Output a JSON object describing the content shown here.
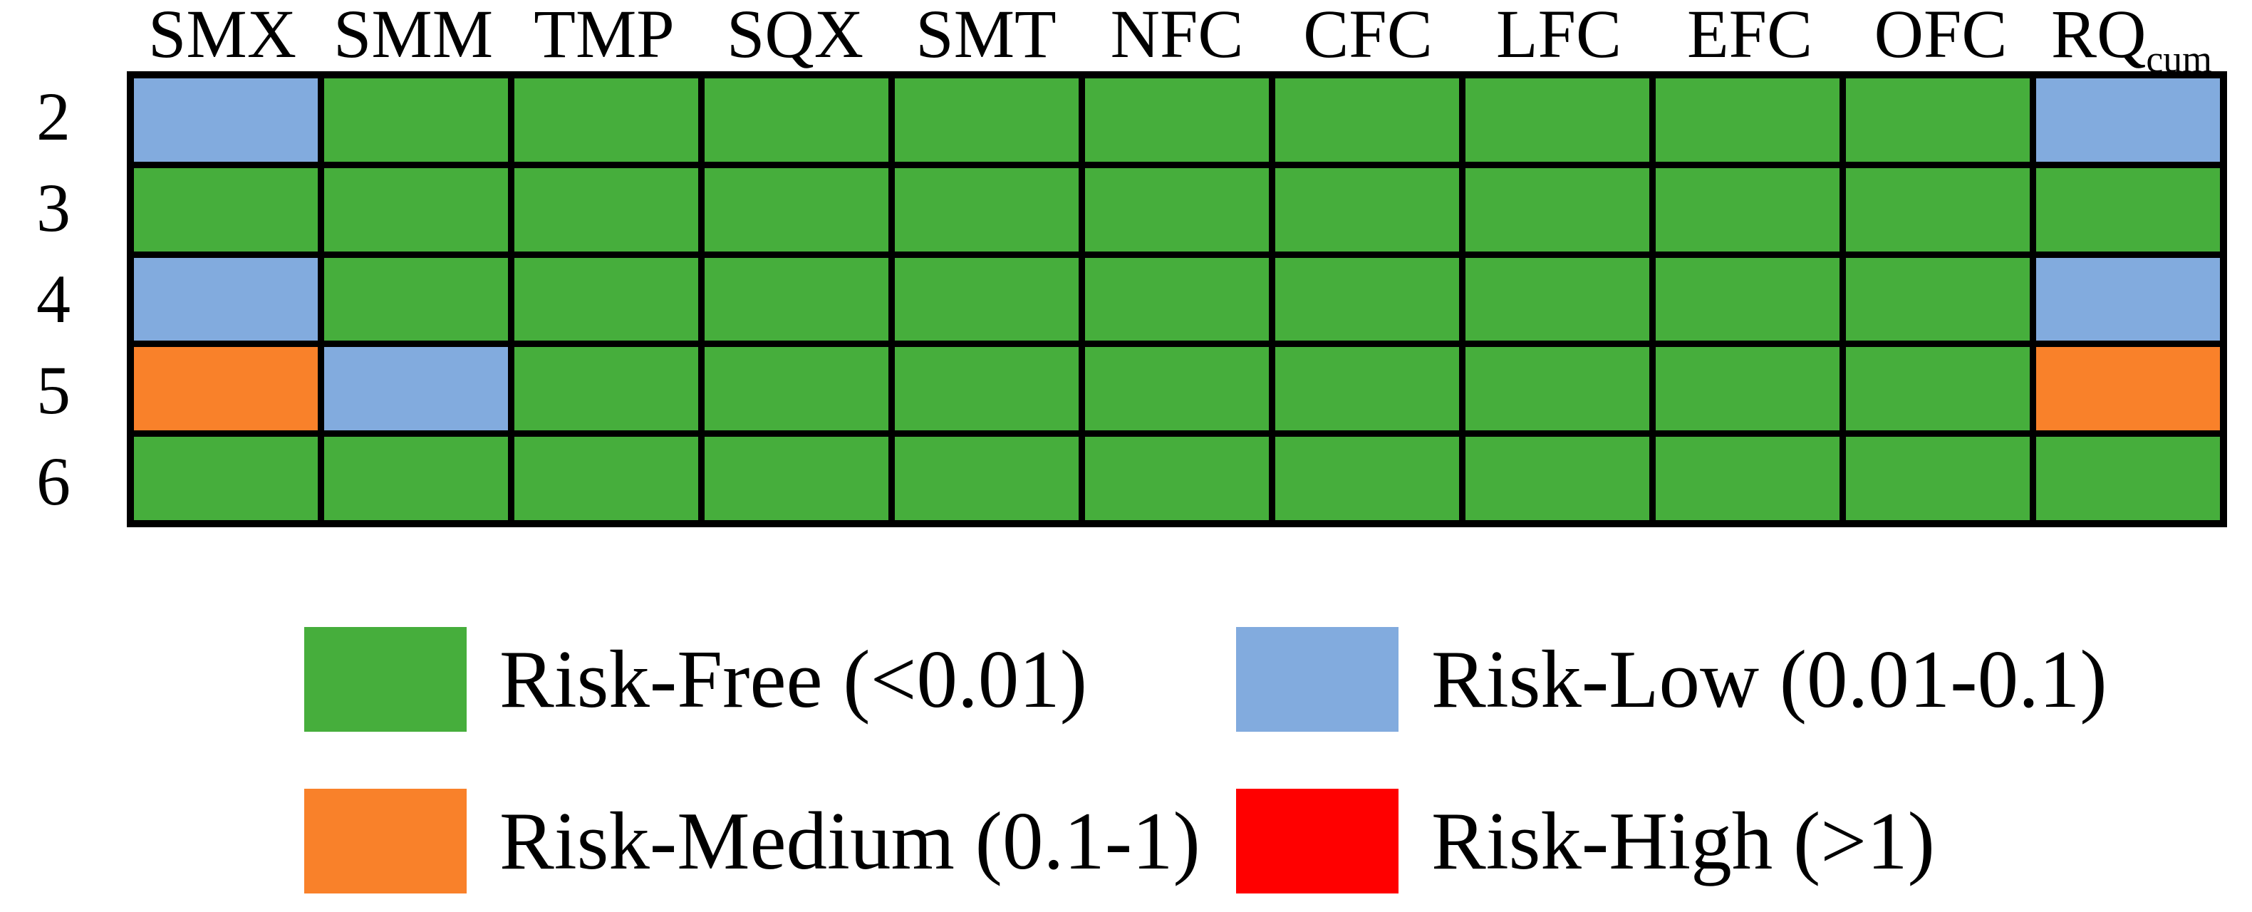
{
  "colors": {
    "free": "#46AE3C",
    "low": "#82ABDE",
    "medium": "#F9812A",
    "high": "#FF0000",
    "grid_line": "#000000",
    "background": "#FFFFFF",
    "text": "#000000"
  },
  "chart_data": {
    "type": "heatmap",
    "columns": [
      {
        "label": "SMX",
        "sub": ""
      },
      {
        "label": "SMM",
        "sub": ""
      },
      {
        "label": "TMP",
        "sub": ""
      },
      {
        "label": "SQX",
        "sub": ""
      },
      {
        "label": "SMT",
        "sub": ""
      },
      {
        "label": "NFC",
        "sub": ""
      },
      {
        "label": "CFC",
        "sub": ""
      },
      {
        "label": "LFC",
        "sub": ""
      },
      {
        "label": "EFC",
        "sub": ""
      },
      {
        "label": "OFC",
        "sub": ""
      },
      {
        "label": "RQ",
        "sub": "cum"
      }
    ],
    "row_labels": [
      "2",
      "3",
      "4",
      "5",
      "6"
    ],
    "cells": [
      [
        "low",
        "free",
        "free",
        "free",
        "free",
        "free",
        "free",
        "free",
        "free",
        "free",
        "low"
      ],
      [
        "free",
        "free",
        "free",
        "free",
        "free",
        "free",
        "free",
        "free",
        "free",
        "free",
        "free"
      ],
      [
        "low",
        "free",
        "free",
        "free",
        "free",
        "free",
        "free",
        "free",
        "free",
        "free",
        "low"
      ],
      [
        "medium",
        "low",
        "free",
        "free",
        "free",
        "free",
        "free",
        "free",
        "free",
        "free",
        "medium"
      ],
      [
        "free",
        "free",
        "free",
        "free",
        "free",
        "free",
        "free",
        "free",
        "free",
        "free",
        "free"
      ]
    ],
    "legend": [
      {
        "label": "Risk-Free (<0.01)",
        "level": "free",
        "color": "#46AE3C"
      },
      {
        "label": "Risk-Low (0.01-0.1)",
        "level": "low",
        "color": "#82ABDE"
      },
      {
        "label": "Risk-Medium (0.1-1)",
        "level": "medium",
        "color": "#F9812A"
      },
      {
        "label": "Risk-High (>1)",
        "level": "high",
        "color": "#FF0000"
      }
    ]
  }
}
